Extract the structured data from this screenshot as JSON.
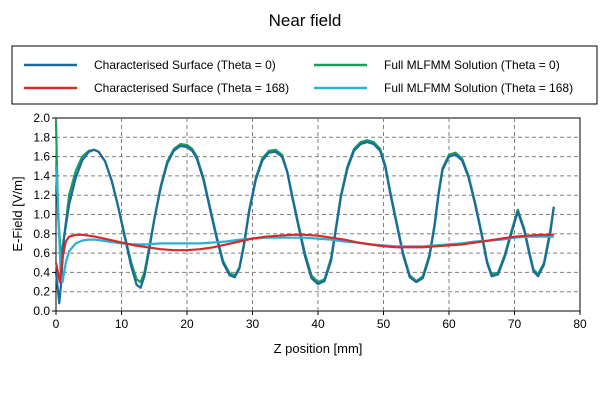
{
  "chart_data": {
    "type": "line",
    "title": "Near field",
    "xlabel": "Z position [mm]",
    "ylabel": "E-Field [V/m]",
    "xlim": [
      0,
      80
    ],
    "ylim": [
      0,
      2.0
    ],
    "xticks": [
      0,
      10,
      20,
      30,
      40,
      50,
      60,
      70,
      80
    ],
    "yticks": [
      0.0,
      0.2,
      0.4,
      0.6,
      0.8,
      1.0,
      1.2,
      1.4,
      1.6,
      1.8,
      2.0
    ],
    "xtick_labels": [
      "0",
      "10",
      "20",
      "30",
      "40",
      "50",
      "60",
      "70",
      "80"
    ],
    "ytick_labels": [
      "0.0",
      "0.2",
      "0.4",
      "0.6",
      "0.8",
      "1.0",
      "1.2",
      "1.4",
      "1.6",
      "1.8",
      "2.0"
    ],
    "grid": true,
    "legend_position": "top",
    "series": [
      {
        "name": "Full MLFMM Solution (Theta = 0)",
        "color": "#1a9e5a",
        "x": [
          0,
          0.3,
          0.8,
          1.3,
          2,
          3,
          4,
          5,
          5.8,
          6.5,
          7.5,
          8.5,
          9.5,
          10.5,
          11.5,
          12.3,
          12.9,
          13.5,
          14.2,
          15,
          16,
          17,
          18,
          19,
          20,
          20.8,
          21.5,
          22.5,
          23.5,
          24.5,
          25.5,
          26.5,
          27.3,
          28,
          28.7,
          29.5,
          30.5,
          31.5,
          32.5,
          33.5,
          34.5,
          35.3,
          36,
          37,
          38,
          39,
          40,
          41,
          42,
          42.7,
          43.5,
          44.5,
          45.5,
          46.5,
          47.5,
          48.5,
          49.5,
          50.3,
          51,
          52,
          53,
          54,
          55,
          56,
          57,
          57.8,
          58.4,
          59,
          60,
          61,
          62,
          63,
          64,
          65,
          65.8,
          66.5,
          67.5,
          68.5,
          69.5,
          70.5,
          71.5,
          72.3,
          72.9,
          73.6,
          74.5,
          75.5,
          76
        ],
        "y": [
          1.97,
          1.0,
          0.55,
          0.8,
          1.2,
          1.45,
          1.6,
          1.66,
          1.67,
          1.65,
          1.55,
          1.35,
          1.08,
          0.78,
          0.5,
          0.33,
          0.3,
          0.4,
          0.65,
          0.95,
          1.3,
          1.55,
          1.68,
          1.73,
          1.72,
          1.68,
          1.6,
          1.38,
          1.08,
          0.78,
          0.52,
          0.39,
          0.37,
          0.45,
          0.7,
          1.05,
          1.38,
          1.58,
          1.66,
          1.67,
          1.62,
          1.45,
          1.22,
          0.9,
          0.6,
          0.37,
          0.3,
          0.33,
          0.55,
          0.85,
          1.2,
          1.5,
          1.68,
          1.75,
          1.77,
          1.75,
          1.68,
          1.5,
          1.25,
          0.92,
          0.6,
          0.37,
          0.31,
          0.36,
          0.58,
          0.9,
          1.22,
          1.48,
          1.62,
          1.64,
          1.58,
          1.4,
          1.12,
          0.8,
          0.52,
          0.38,
          0.4,
          0.58,
          0.82,
          1.05,
          0.85,
          0.6,
          0.43,
          0.38,
          0.5,
          0.85,
          1.08
        ]
      },
      {
        "name": "Characterised Surface (Theta = 0)",
        "color": "#1b6a9c",
        "x": [
          0,
          0.5,
          0.8,
          1.2,
          2,
          3,
          4,
          5,
          5.8,
          6.5,
          7.5,
          8.5,
          9.5,
          10.5,
          11.5,
          12.3,
          12.9,
          13.5,
          14.2,
          15,
          16,
          17,
          18,
          19,
          20,
          20.8,
          21.5,
          22.5,
          23.5,
          24.5,
          25.5,
          26.5,
          27.3,
          28,
          28.7,
          29.5,
          30.5,
          31.5,
          32.5,
          33.5,
          34.5,
          35.3,
          36,
          37,
          38,
          39,
          40,
          41,
          42,
          42.7,
          43.5,
          44.5,
          45.5,
          46.5,
          47.5,
          48.5,
          49.5,
          50.3,
          51,
          52,
          53,
          54,
          55,
          56,
          57,
          57.8,
          58.4,
          59,
          60,
          61,
          62,
          63,
          64,
          65,
          65.8,
          66.5,
          67.5,
          68.5,
          69.5,
          70.5,
          71.5,
          72.3,
          72.9,
          73.6,
          74.5,
          75.5,
          76
        ],
        "y": [
          0.4,
          0.08,
          0.3,
          0.75,
          1.1,
          1.38,
          1.56,
          1.65,
          1.67,
          1.65,
          1.55,
          1.35,
          1.08,
          0.76,
          0.46,
          0.27,
          0.24,
          0.36,
          0.62,
          0.95,
          1.28,
          1.53,
          1.66,
          1.71,
          1.7,
          1.66,
          1.58,
          1.36,
          1.06,
          0.76,
          0.5,
          0.37,
          0.35,
          0.44,
          0.68,
          1.03,
          1.36,
          1.56,
          1.64,
          1.65,
          1.6,
          1.44,
          1.2,
          0.88,
          0.57,
          0.34,
          0.28,
          0.31,
          0.52,
          0.83,
          1.18,
          1.48,
          1.66,
          1.73,
          1.75,
          1.73,
          1.66,
          1.48,
          1.23,
          0.9,
          0.58,
          0.35,
          0.3,
          0.34,
          0.56,
          0.88,
          1.2,
          1.46,
          1.6,
          1.62,
          1.56,
          1.38,
          1.1,
          0.78,
          0.5,
          0.36,
          0.38,
          0.56,
          0.8,
          1.03,
          0.83,
          0.58,
          0.41,
          0.36,
          0.48,
          0.82,
          1.08
        ]
      },
      {
        "name": "Full MLFMM Solution (Theta = 168)",
        "color": "#2bb1d3",
        "x": [
          0,
          0.3,
          0.7,
          1,
          1.5,
          2,
          3,
          4,
          5,
          6,
          8,
          10,
          12,
          14,
          16,
          18,
          20,
          22,
          24,
          26,
          28,
          30,
          32,
          34,
          36,
          38,
          40,
          42,
          44,
          46,
          48,
          50,
          52,
          54,
          56,
          58,
          60,
          62,
          64,
          66,
          68,
          70,
          72,
          74,
          76
        ],
        "y": [
          1.5,
          1.1,
          0.4,
          0.3,
          0.5,
          0.62,
          0.7,
          0.73,
          0.74,
          0.74,
          0.72,
          0.7,
          0.69,
          0.69,
          0.7,
          0.7,
          0.7,
          0.7,
          0.71,
          0.72,
          0.74,
          0.75,
          0.76,
          0.76,
          0.76,
          0.76,
          0.75,
          0.74,
          0.72,
          0.71,
          0.69,
          0.68,
          0.67,
          0.67,
          0.67,
          0.68,
          0.69,
          0.7,
          0.72,
          0.73,
          0.74,
          0.76,
          0.77,
          0.77,
          0.77
        ]
      },
      {
        "name": "Characterised Surface (Theta = 168)",
        "color": "#d42a2a",
        "x": [
          0,
          0.6,
          1.0,
          1.5,
          2,
          3,
          4,
          5,
          6,
          8,
          10,
          12,
          14,
          16,
          18,
          20,
          22,
          24,
          26,
          28,
          30,
          32,
          34,
          36,
          38,
          40,
          42,
          44,
          46,
          48,
          50,
          52,
          54,
          56,
          58,
          60,
          62,
          64,
          66,
          68,
          70,
          72,
          74,
          76
        ],
        "y": [
          0.5,
          0.3,
          0.55,
          0.72,
          0.77,
          0.79,
          0.79,
          0.78,
          0.77,
          0.74,
          0.71,
          0.68,
          0.66,
          0.64,
          0.63,
          0.63,
          0.64,
          0.66,
          0.69,
          0.72,
          0.75,
          0.77,
          0.78,
          0.79,
          0.79,
          0.78,
          0.76,
          0.74,
          0.71,
          0.69,
          0.67,
          0.66,
          0.66,
          0.66,
          0.67,
          0.68,
          0.69,
          0.71,
          0.73,
          0.75,
          0.77,
          0.78,
          0.79,
          0.79
        ]
      }
    ],
    "legend_entries": [
      {
        "name": "Characterised Surface (Theta = 0)",
        "color": "#1b6a9c",
        "col": 0,
        "row": 0
      },
      {
        "name": "Characterised Surface (Theta = 168)",
        "color": "#d42a2a",
        "col": 0,
        "row": 1
      },
      {
        "name": "Full MLFMM Solution (Theta = 0)",
        "color": "#1a9e5a",
        "col": 1,
        "row": 0
      },
      {
        "name": "Full MLFMM Solution (Theta = 168)",
        "color": "#2bb1d3",
        "col": 1,
        "row": 1
      }
    ]
  }
}
